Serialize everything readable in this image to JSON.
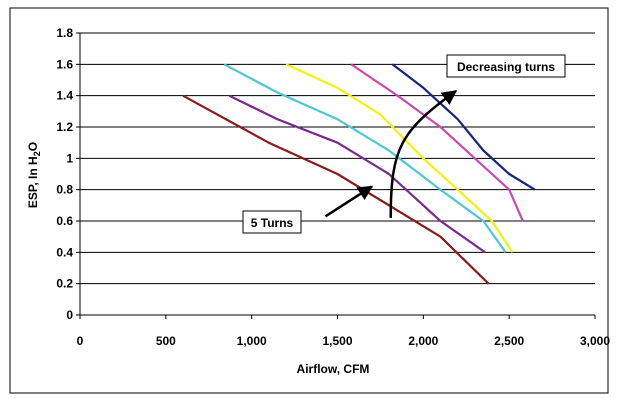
{
  "chart_data": {
    "type": "line",
    "xlabel": "Airflow, CFM",
    "ylabel_parts": [
      "ESP, In H",
      "2",
      "O"
    ],
    "xlim": [
      0,
      3000
    ],
    "ylim": [
      0,
      1.8
    ],
    "x_ticks": [
      0,
      500,
      1000,
      1500,
      2000,
      2500,
      3000
    ],
    "x_tick_labels": [
      "0",
      "500",
      "1,000",
      "1,500",
      "2,000",
      "2,500",
      "3,000"
    ],
    "y_ticks": [
      0,
      0.2,
      0.4,
      0.6,
      0.8,
      1,
      1.2,
      1.4,
      1.6,
      1.8
    ],
    "y_tick_labels": [
      "0",
      "0.2",
      "0.4",
      "0.6",
      "0.8",
      "1",
      "1.2",
      "1.4",
      "1.6",
      "1.8"
    ],
    "grid": "horizontal",
    "series": [
      {
        "color": "#8B1A1A",
        "points": [
          [
            600,
            1.4
          ],
          [
            1100,
            1.1
          ],
          [
            1500,
            0.9
          ],
          [
            1800,
            0.7
          ],
          [
            2100,
            0.5
          ],
          [
            2380,
            0.2
          ]
        ]
      },
      {
        "color": "#7A2A8C",
        "points": [
          [
            870,
            1.4
          ],
          [
            1150,
            1.25
          ],
          [
            1500,
            1.1
          ],
          [
            1800,
            0.9
          ],
          [
            2100,
            0.6
          ],
          [
            2360,
            0.4
          ]
        ]
      },
      {
        "color": "#4FC6D8",
        "points": [
          [
            840,
            1.6
          ],
          [
            1150,
            1.42
          ],
          [
            1500,
            1.25
          ],
          [
            1800,
            1.05
          ],
          [
            2100,
            0.8
          ],
          [
            2350,
            0.6
          ],
          [
            2480,
            0.4
          ]
        ]
      },
      {
        "color": "#F2F20D",
        "points": [
          [
            1200,
            1.6
          ],
          [
            1500,
            1.45
          ],
          [
            1750,
            1.28
          ],
          [
            2000,
            1.0
          ],
          [
            2200,
            0.8
          ],
          [
            2400,
            0.6
          ],
          [
            2520,
            0.4
          ]
        ]
      },
      {
        "color": "#C94CB2",
        "points": [
          [
            1580,
            1.6
          ],
          [
            1850,
            1.4
          ],
          [
            2100,
            1.2
          ],
          [
            2300,
            1.0
          ],
          [
            2500,
            0.8
          ],
          [
            2580,
            0.6
          ]
        ]
      },
      {
        "color": "#1A237E",
        "points": [
          [
            1820,
            1.6
          ],
          [
            2000,
            1.45
          ],
          [
            2200,
            1.25
          ],
          [
            2350,
            1.05
          ],
          [
            2500,
            0.9
          ],
          [
            2650,
            0.8
          ]
        ]
      }
    ],
    "annotations": [
      {
        "text": "5 Turns",
        "arrow_from": [
          1430,
          0.63
        ],
        "arrow_to": [
          1700,
          0.82
        ]
      },
      {
        "text": "Decreasing turns",
        "arrow_from": [
          1810,
          0.62
        ],
        "arrow_to": [
          2190,
          1.43
        ]
      }
    ]
  }
}
